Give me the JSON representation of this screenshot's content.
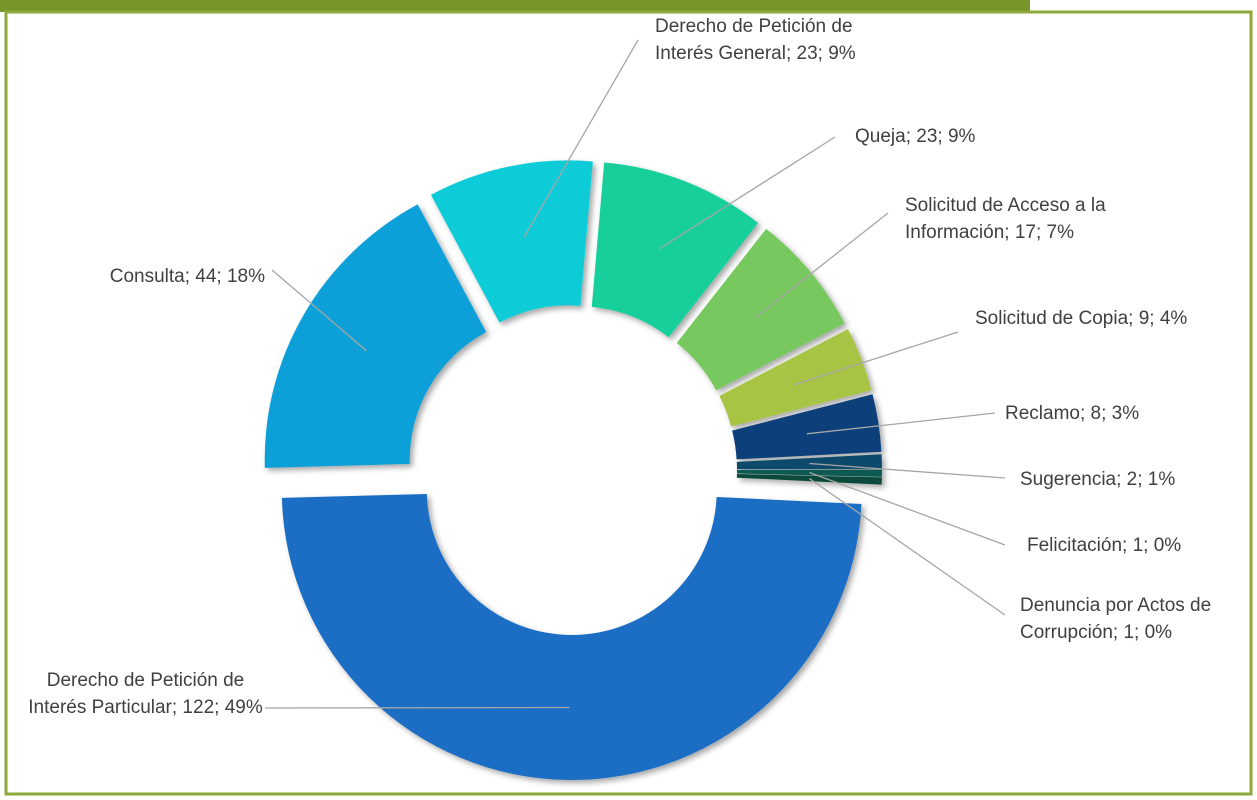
{
  "chart_data": {
    "type": "donut",
    "values": [
      122,
      44,
      23,
      23,
      17,
      9,
      8,
      2,
      1,
      1
    ],
    "value_labels": [
      "Derecho de Petición de Interés Particular; 122; 49%",
      "Consulta; 44; 18%",
      "Derecho de Petición de Interés General; 23; 9%",
      "Queja; 23; 9%",
      "Solicitud de Acceso a la Información; 17; 7%",
      "Solicitud de Copia; 9; 4%",
      "Reclamo; 8; 3%",
      "Sugerencia; 2; 1%",
      "Felicitación; 1; 0%",
      "Denuncia por Actos de Corrupción; 1; 0%"
    ],
    "colors": [
      "#1a6dc4",
      "#0ba0d8",
      "#10ccd8",
      "#13cf9a",
      "#78c860",
      "#a8c444",
      "#0d3f7a",
      "#0b4a6a",
      "#0d5a55",
      "#0a4a3a"
    ]
  }
}
